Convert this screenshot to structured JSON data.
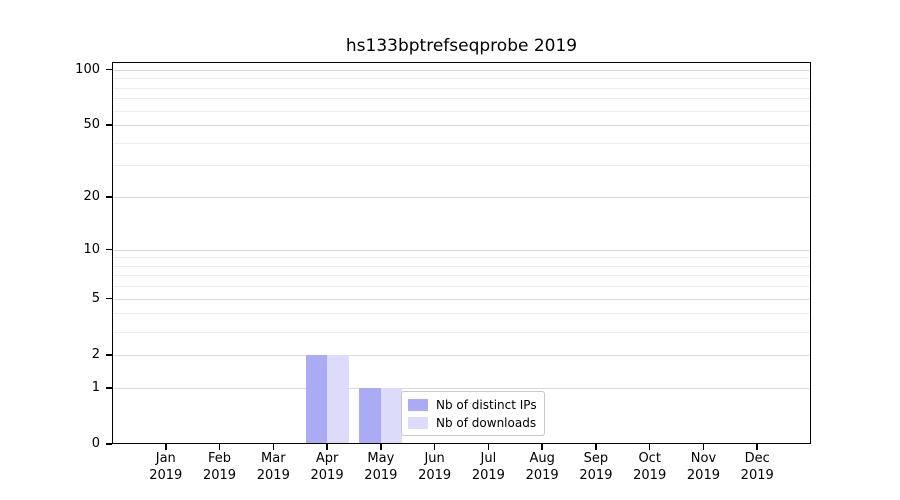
{
  "chart_data": {
    "type": "bar",
    "title": "hs133bptrefseqprobe 2019",
    "categories": [
      "Jan",
      "Feb",
      "Mar",
      "Apr",
      "May",
      "Jun",
      "Jul",
      "Aug",
      "Sep",
      "Oct",
      "Nov",
      "Dec"
    ],
    "category_year": "2019",
    "series": [
      {
        "name": "Nb of distinct IPs",
        "color": "#aaaaf5",
        "values": [
          0,
          0,
          0,
          2,
          1,
          0,
          0,
          0,
          0,
          0,
          0,
          0
        ]
      },
      {
        "name": "Nb of downloads",
        "color": "#dcdcfa",
        "values": [
          0,
          0,
          0,
          2,
          1,
          0,
          0,
          0,
          0,
          0,
          0,
          0
        ]
      }
    ],
    "xlabel": "",
    "ylabel": "",
    "yticks": [
      0,
      1,
      2,
      5,
      10,
      20,
      50,
      100
    ],
    "minor_gridline_values": [
      3,
      4,
      6,
      7,
      8,
      9,
      30,
      40,
      60,
      70,
      80,
      90
    ],
    "scale": "log1p",
    "ylim": [
      0,
      110
    ],
    "grid": true,
    "legend_position": "lower-center"
  }
}
